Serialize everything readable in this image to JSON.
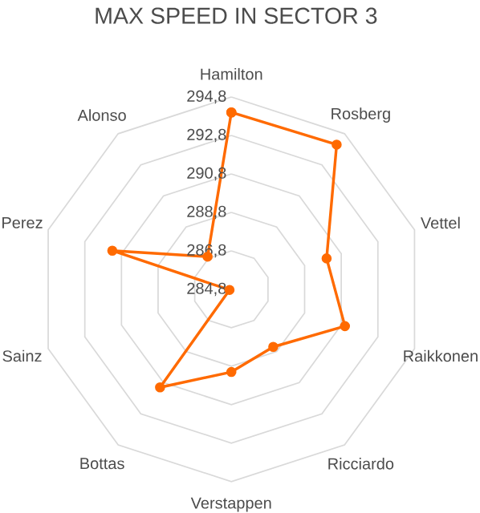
{
  "chart_data": {
    "type": "radar",
    "title": "MAX SPEED IN SECTOR 3",
    "categories": [
      "Hamilton",
      "Rosberg",
      "Vettel",
      "Raikkonen",
      "Ricciardo",
      "Verstappen",
      "Bottas",
      "Sainz",
      "Perez",
      "Alonso"
    ],
    "series": [
      {
        "color": "#ff6a00",
        "values": [
          294.0,
          294.1,
          290.0,
          291.0,
          288.5,
          289.1,
          291.1,
          284.9,
          291.3,
          286.9
        ]
      }
    ],
    "ylim": [
      284.8,
      294.8
    ],
    "yticks": [
      {
        "value": 284.8,
        "label": "284,8"
      },
      {
        "value": 286.8,
        "label": "286,8"
      },
      {
        "value": 288.8,
        "label": "288,8"
      },
      {
        "value": 290.8,
        "label": "290,8"
      },
      {
        "value": 292.8,
        "label": "292,8"
      },
      {
        "value": 294.8,
        "label": "294,8"
      }
    ],
    "grid": true,
    "marker": "circle"
  }
}
